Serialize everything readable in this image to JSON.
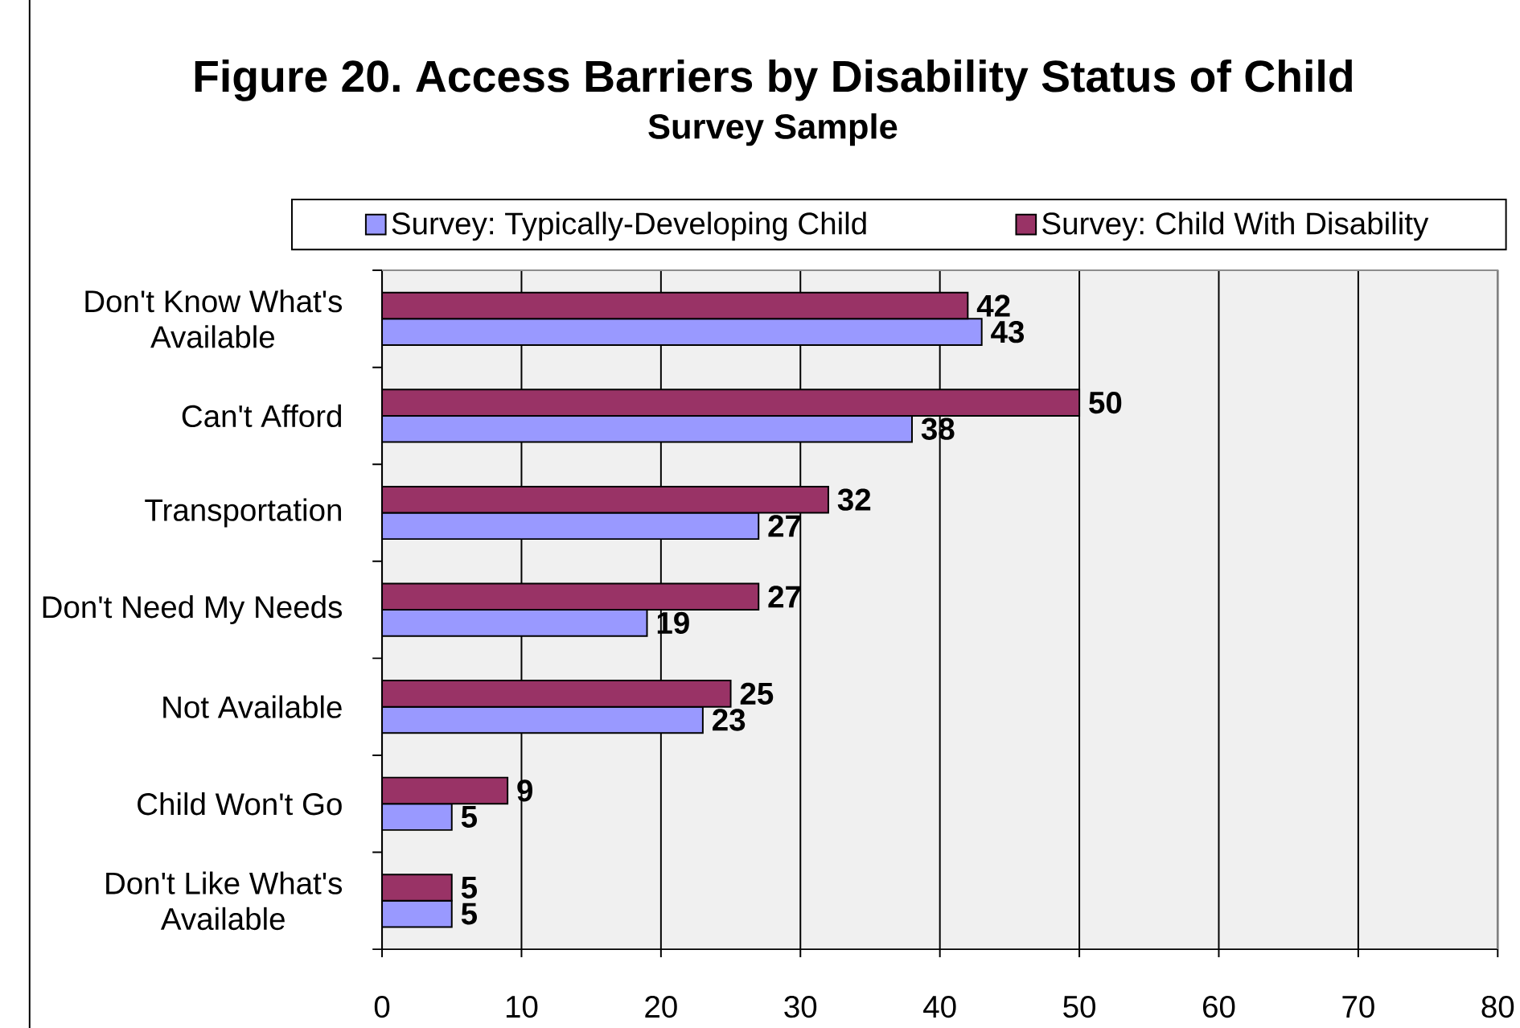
{
  "chart_data": {
    "type": "bar",
    "orientation": "horizontal",
    "title": "Figure 20. Access Barriers by Disability Status of Child",
    "subtitle": "Survey Sample",
    "categories": [
      "Don't Know What's Available",
      "Can't Afford",
      "Transportation",
      "Don't Need My Needs",
      "Not Available",
      "Child Won't Go",
      "Don't Like What's Available"
    ],
    "series": [
      {
        "name": "Survey: Typically-Developing Child",
        "color": "#9999ff",
        "values": [
          43,
          38,
          27,
          19,
          23,
          5,
          5
        ]
      },
      {
        "name": "Survey: Child With Disability",
        "color": "#993366",
        "values": [
          42,
          50,
          32,
          27,
          25,
          9,
          5
        ]
      }
    ],
    "xlim": [
      0,
      80
    ],
    "xticks": [
      0,
      10,
      20,
      30,
      40,
      50,
      60,
      70,
      80
    ],
    "grid": "x",
    "legend": "top",
    "data_labels": true
  }
}
